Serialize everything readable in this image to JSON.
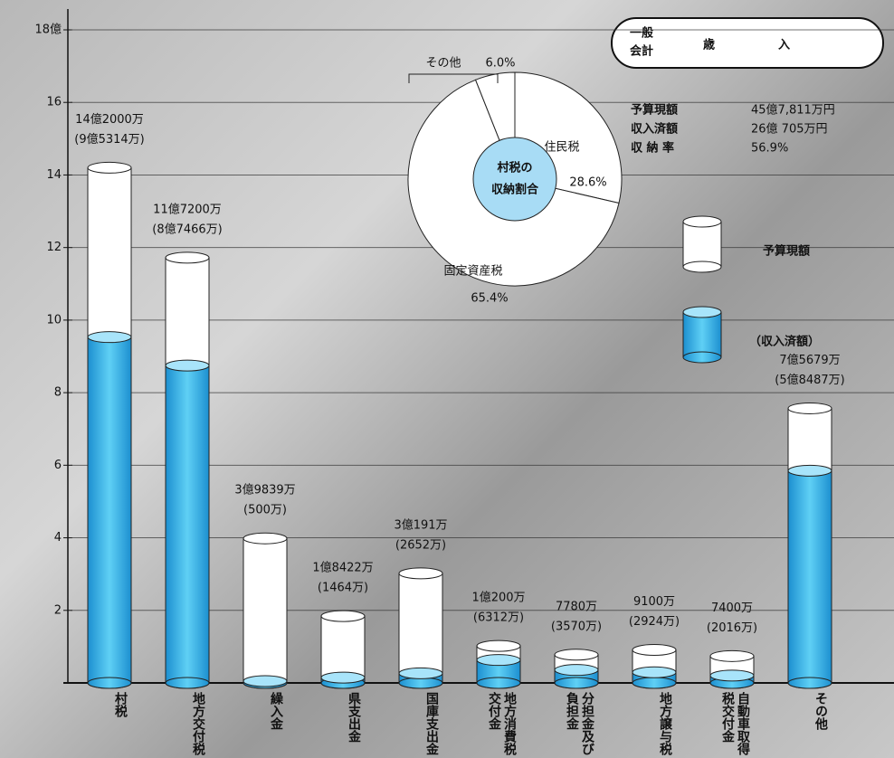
{
  "header": {
    "tag_lines": [
      "一般",
      "会計"
    ],
    "title": "歳入"
  },
  "summary": [
    {
      "label": "予算現額",
      "value": "45億7,811万円"
    },
    {
      "label": "収入済額",
      "value": "26億 705万円"
    },
    {
      "label": "収 納 率",
      "value": "56.9%"
    }
  ],
  "chart_data": [
    {
      "type": "bar",
      "categories": [
        "村税",
        "地方交付税",
        "繰入金",
        "県支出金",
        "国庫支出金",
        "地方消費税交付金",
        "分担金及び負担金",
        "地方譲与税",
        "自動車取得税交付金",
        "その他"
      ],
      "series": [
        {
          "name": "予算現額",
          "color": "#ffffff",
          "values": [
            14.2,
            11.72,
            3.9839,
            1.8422,
            3.0191,
            1.02,
            0.778,
            0.91,
            0.74,
            7.5679
          ],
          "value_labels": [
            "14億2000万",
            "11億7200万",
            "3億9839万",
            "1億8422万",
            "3億191万",
            "1億200万",
            "7780万",
            "9100万",
            "7400万",
            "7億5679万"
          ]
        },
        {
          "name": "（収入済額）",
          "color": "#3cb4e6",
          "values": [
            9.5314,
            8.7466,
            0.05,
            0.1464,
            0.2652,
            0.6312,
            0.357,
            0.2924,
            0.2016,
            5.8487
          ],
          "value_labels": [
            "(9億5314万)",
            "(8億7466万)",
            "(500万)",
            "(1464万)",
            "(2652万)",
            "(6312万)",
            "(3570万)",
            "(2924万)",
            "(2016万)",
            "(5億8487万)"
          ]
        }
      ],
      "ylim": [
        0,
        18
      ],
      "yticks": [
        2,
        4,
        6,
        8,
        10,
        12,
        14,
        16,
        {
          "value": 18,
          "label": "18億"
        }
      ],
      "grid": true
    },
    {
      "type": "pie",
      "title_lines": [
        "村税の",
        "収納割合"
      ],
      "categories": [
        "住民税",
        "固定資産税",
        "その他"
      ],
      "values": [
        28.6,
        65.4,
        6.0
      ],
      "value_labels": [
        "28.6%",
        "65.4%",
        "6.0%"
      ],
      "color": "#ffffff",
      "center_color": "#a8dcf5"
    }
  ]
}
